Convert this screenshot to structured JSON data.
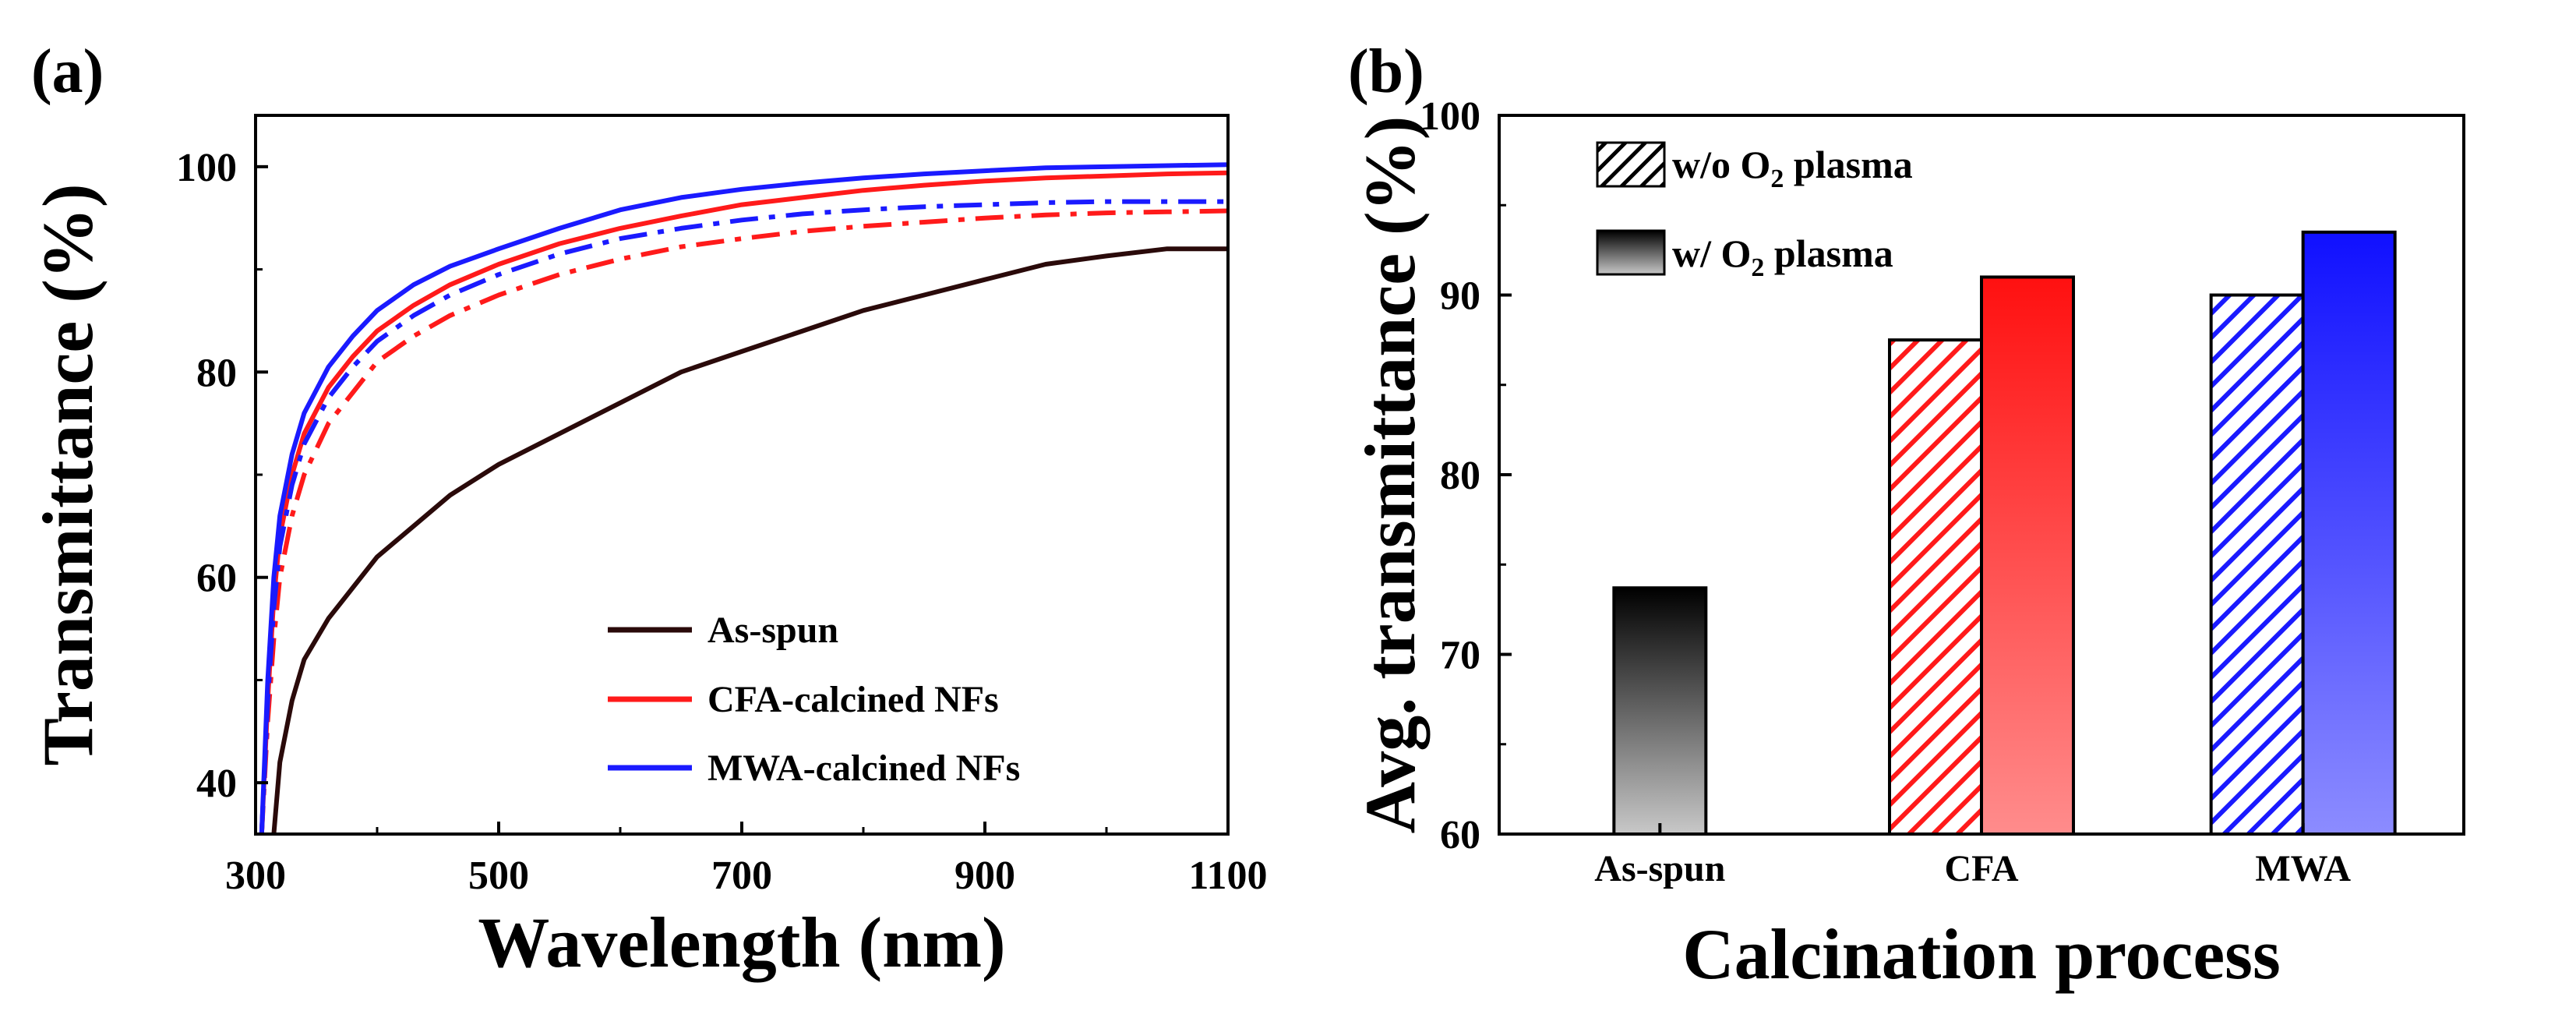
{
  "colors": {
    "as_spun": "#2a0a0a",
    "cfa": "#ff1a1a",
    "mwa": "#1a1aff",
    "axis": "#000000"
  },
  "chart_data": [
    {
      "panel_label": "(a)",
      "type": "line",
      "xlabel": "Wavelength (nm)",
      "ylabel": "Transmittance (%)",
      "xlim": [
        300,
        1100
      ],
      "ylim": [
        35,
        105
      ],
      "xticks": [
        300,
        500,
        700,
        900,
        1100
      ],
      "yticks": [
        40,
        60,
        80,
        100
      ],
      "legend_position": "bottom-right",
      "legend": [
        "As-spun",
        "CFA-calcined NFs",
        "MWA-calcined NFs"
      ],
      "x": [
        305,
        310,
        315,
        320,
        330,
        340,
        360,
        380,
        400,
        430,
        460,
        500,
        550,
        600,
        650,
        700,
        750,
        800,
        850,
        900,
        950,
        1000,
        1050,
        1100
      ],
      "series": [
        {
          "name": "As-spun",
          "style": "solid",
          "color_key": "as_spun",
          "values": [
            null,
            null,
            35,
            42,
            48,
            52,
            56,
            59,
            62,
            65,
            68,
            71,
            74,
            77,
            80,
            82,
            84,
            86,
            87.5,
            89,
            90.5,
            91.3,
            92,
            92
          ]
        },
        {
          "name": "CFA-calcined NFs (w/o O2 plasma)",
          "style": "dashdot",
          "color_key": "cfa",
          "values": [
            35,
            46,
            54,
            60,
            66,
            70,
            75,
            78,
            81,
            83.5,
            85.5,
            87.5,
            89.5,
            91,
            92.2,
            93,
            93.7,
            94.2,
            94.6,
            95,
            95.3,
            95.5,
            95.6,
            95.7
          ]
        },
        {
          "name": "CFA-calcined NFs (w/ O2 plasma)",
          "style": "solid",
          "color_key": "cfa",
          "values": [
            35,
            48,
            58,
            64,
            70,
            74,
            78.5,
            81.5,
            84,
            86.5,
            88.5,
            90.5,
            92.5,
            94,
            95.2,
            96.3,
            97,
            97.7,
            98.2,
            98.6,
            98.9,
            99.1,
            99.3,
            99.4
          ]
        },
        {
          "name": "MWA-calcined NFs (w/o O2 plasma)",
          "style": "dashdot",
          "color_key": "mwa",
          "values": [
            35,
            48,
            57,
            63,
            69,
            73,
            77.5,
            80.5,
            83,
            85.5,
            87.5,
            89.5,
            91.5,
            93,
            94,
            94.8,
            95.4,
            95.8,
            96.1,
            96.3,
            96.5,
            96.6,
            96.6,
            96.6
          ]
        },
        {
          "name": "MWA-calcined NFs (w/ O2 plasma)",
          "style": "solid",
          "color_key": "mwa",
          "values": [
            35,
            50,
            60,
            66,
            72,
            76,
            80.5,
            83.5,
            86,
            88.5,
            90.3,
            92,
            94,
            95.8,
            97,
            97.8,
            98.4,
            98.9,
            99.3,
            99.6,
            99.9,
            100,
            100.1,
            100.2
          ]
        }
      ]
    },
    {
      "panel_label": "(b)",
      "type": "bar",
      "xlabel": "Calcination process",
      "ylabel": "Avg. transmittance (%)",
      "ylim": [
        60,
        100
      ],
      "yticks": [
        60,
        70,
        80,
        90,
        100
      ],
      "categories": [
        "As-spun",
        "CFA",
        "MWA"
      ],
      "legend_position": "top-left",
      "legend_pre": [
        "w/o O",
        "w/ O"
      ],
      "legend_sub": "2",
      "legend_post": " plasma",
      "series": [
        {
          "name": "w/o O2 plasma",
          "pattern": "hatched",
          "values": [
            null,
            87.5,
            90
          ]
        },
        {
          "name": "w/ O2 plasma",
          "pattern": "gradient",
          "values": [
            73.7,
            91,
            93.5
          ]
        }
      ]
    }
  ]
}
